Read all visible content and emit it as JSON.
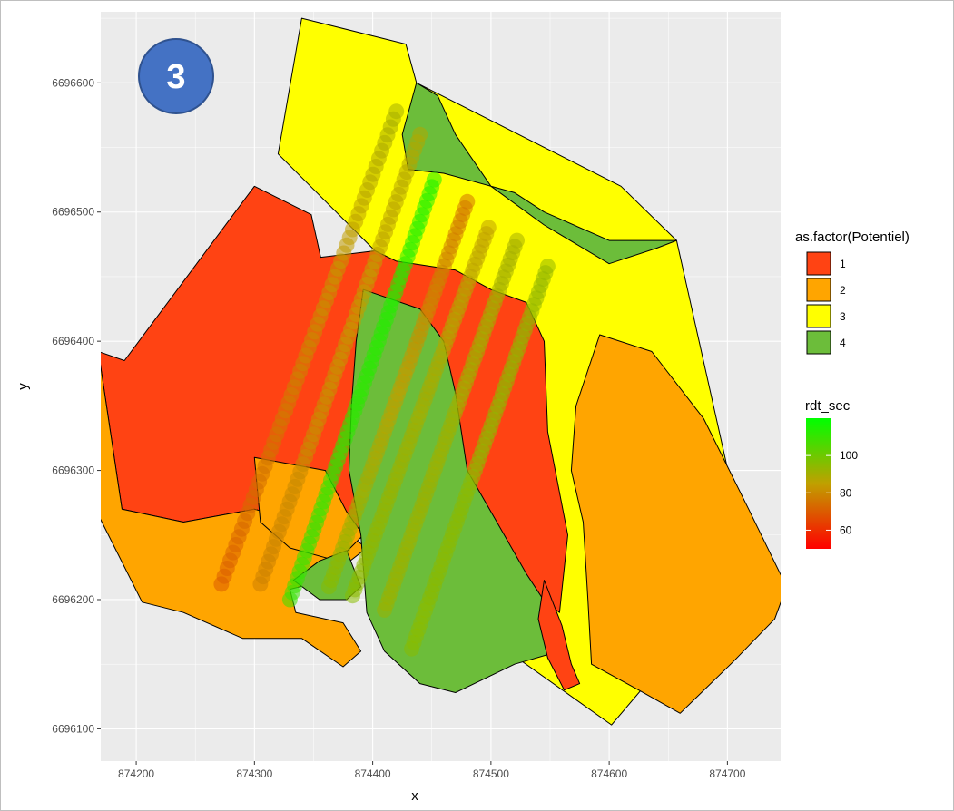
{
  "badge": {
    "text": "3",
    "color": "#4472c4",
    "border": "#2f528f"
  },
  "colors": {
    "panel_bg": "#ebebeb",
    "grid_major": "#ffffff",
    "zone_1": "#ff4313",
    "zone_2": "#ffa500",
    "zone_3": "#ffff00",
    "zone_4": "#6cbd3a",
    "gradient_low": "#ff0000",
    "gradient_mid": "#c0a000",
    "gradient_high": "#00ff00"
  },
  "chart_data": {
    "type": "scatter",
    "title": "",
    "xlabel": "x",
    "ylabel": "y",
    "xlim": [
      874170,
      874745
    ],
    "ylim": [
      6696075,
      6696655
    ],
    "x_ticks": [
      874200,
      874300,
      874400,
      874500,
      874600,
      874700
    ],
    "y_ticks": [
      6696100,
      6696200,
      6696300,
      6696400,
      6696500,
      6696600
    ],
    "grid": true,
    "legend_position": "right",
    "fill_legend": {
      "title": "as.factor(Potentiel)",
      "entries": [
        {
          "label": "1",
          "color": "#ff4313"
        },
        {
          "label": "2",
          "color": "#ffa500"
        },
        {
          "label": "3",
          "color": "#ffff00"
        },
        {
          "label": "4",
          "color": "#6cbd3a"
        }
      ]
    },
    "color_legend": {
      "title": "rdt_sec",
      "range": [
        50,
        120
      ],
      "ticks": [
        60,
        80,
        100
      ],
      "low_color": "#ff0000",
      "high_color": "#00ff00"
    },
    "zones": [
      {
        "potentiel": "3",
        "points": [
          [
            874340,
            6696650
          ],
          [
            874428,
            6696630
          ],
          [
            874437,
            6696600
          ],
          [
            874610,
            6696520
          ],
          [
            874657,
            6696478
          ],
          [
            874718,
            6696228
          ],
          [
            874602,
            6696103
          ],
          [
            874468,
            6696190
          ],
          [
            874402,
            6696470
          ],
          [
            874320,
            6696545
          ]
        ]
      },
      {
        "potentiel": "4",
        "points": [
          [
            874437,
            6696600
          ],
          [
            874425,
            6696560
          ],
          [
            874430,
            6696533
          ],
          [
            874460,
            6696530
          ],
          [
            874520,
            6696515
          ],
          [
            874545,
            6696500
          ],
          [
            874600,
            6696478
          ],
          [
            874657,
            6696478
          ],
          [
            874640,
            6696472
          ],
          [
            874600,
            6696460
          ],
          [
            874545,
            6696490
          ],
          [
            874500,
            6696520
          ],
          [
            874470,
            6696560
          ],
          [
            874455,
            6696590
          ]
        ]
      },
      {
        "potentiel": "1",
        "points": [
          [
            874300,
            6696520
          ],
          [
            874348,
            6696498
          ],
          [
            874356,
            6696465
          ],
          [
            874402,
            6696470
          ],
          [
            874420,
            6696462
          ],
          [
            874470,
            6696455
          ],
          [
            874500,
            6696440
          ],
          [
            874530,
            6696430
          ],
          [
            874545,
            6696400
          ],
          [
            874548,
            6696330
          ],
          [
            874565,
            6696250
          ],
          [
            874558,
            6696190
          ],
          [
            874525,
            6696215
          ],
          [
            874420,
            6696240
          ],
          [
            874380,
            6696250
          ],
          [
            874300,
            6696270
          ],
          [
            874240,
            6696260
          ],
          [
            874188,
            6696270
          ],
          [
            874168,
            6696392
          ],
          [
            874190,
            6696385
          ]
        ]
      },
      {
        "potentiel": "2",
        "points": [
          [
            874168,
            6696392
          ],
          [
            874188,
            6696270
          ],
          [
            874240,
            6696260
          ],
          [
            874300,
            6696270
          ],
          [
            874380,
            6696250
          ],
          [
            874395,
            6696240
          ],
          [
            874360,
            6696215
          ],
          [
            874330,
            6696208
          ],
          [
            874335,
            6696190
          ],
          [
            874375,
            6696182
          ],
          [
            874390,
            6696160
          ],
          [
            874375,
            6696148
          ],
          [
            874340,
            6696170
          ],
          [
            874290,
            6696170
          ],
          [
            874240,
            6696190
          ],
          [
            874205,
            6696198
          ],
          [
            874160,
            6696280
          ]
        ]
      },
      {
        "potentiel": "2",
        "points": [
          [
            874300,
            6696310
          ],
          [
            874360,
            6696300
          ],
          [
            874378,
            6696268
          ],
          [
            874392,
            6696250
          ],
          [
            874370,
            6696230
          ],
          [
            874330,
            6696240
          ],
          [
            874305,
            6696260
          ]
        ]
      },
      {
        "potentiel": "4",
        "points": [
          [
            874392,
            6696440
          ],
          [
            874440,
            6696425
          ],
          [
            874460,
            6696400
          ],
          [
            874470,
            6696360
          ],
          [
            874480,
            6696300
          ],
          [
            874505,
            6696260
          ],
          [
            874530,
            6696220
          ],
          [
            874555,
            6696185
          ],
          [
            874558,
            6696160
          ],
          [
            874520,
            6696150
          ],
          [
            874470,
            6696128
          ],
          [
            874440,
            6696135
          ],
          [
            874410,
            6696160
          ],
          [
            874395,
            6696190
          ],
          [
            874390,
            6696250
          ],
          [
            874380,
            6696300
          ],
          [
            874382,
            6696350
          ],
          [
            874386,
            6696400
          ]
        ]
      },
      {
        "potentiel": "4",
        "points": [
          [
            874333,
            6696215
          ],
          [
            874355,
            6696230
          ],
          [
            874378,
            6696238
          ],
          [
            874390,
            6696210
          ],
          [
            874378,
            6696200
          ],
          [
            874355,
            6696200
          ]
        ]
      },
      {
        "potentiel": "2",
        "points": [
          [
            874592,
            6696405
          ],
          [
            874636,
            6696392
          ],
          [
            874680,
            6696340
          ],
          [
            874718,
            6696270
          ],
          [
            874750,
            6696210
          ],
          [
            874740,
            6696185
          ],
          [
            874705,
            6696152
          ],
          [
            874660,
            6696112
          ],
          [
            874625,
            6696130
          ],
          [
            874585,
            6696150
          ],
          [
            874582,
            6696200
          ],
          [
            874578,
            6696260
          ],
          [
            874568,
            6696300
          ],
          [
            874572,
            6696350
          ]
        ]
      },
      {
        "potentiel": "1",
        "points": [
          [
            874545,
            6696215
          ],
          [
            874560,
            6696180
          ],
          [
            874568,
            6696150
          ],
          [
            874575,
            6696135
          ],
          [
            874562,
            6696130
          ],
          [
            874548,
            6696155
          ],
          [
            874540,
            6696185
          ]
        ]
      }
    ],
    "transects": [
      {
        "start": [
          874272,
          6696212
        ],
        "end": [
          874420,
          6696578
        ],
        "values": [
          70,
          90
        ]
      },
      {
        "start": [
          874305,
          6696212
        ],
        "end": [
          874440,
          6696560
        ],
        "values": [
          78,
          88
        ]
      },
      {
        "start": [
          874330,
          6696200
        ],
        "end": [
          874452,
          6696525
        ],
        "values": [
          110,
          115
        ]
      },
      {
        "start": [
          874363,
          6696210
        ],
        "end": [
          874480,
          6696508
        ],
        "values": [
          95,
          75
        ]
      },
      {
        "start": [
          874383,
          6696203
        ],
        "end": [
          874498,
          6696488
        ],
        "values": [
          95,
          85
        ]
      },
      {
        "start": [
          874410,
          6696192
        ],
        "end": [
          874522,
          6696478
        ],
        "values": [
          92,
          90
        ]
      },
      {
        "start": [
          874433,
          6696162
        ],
        "end": [
          874548,
          6696458
        ],
        "values": [
          95,
          93
        ]
      }
    ]
  }
}
